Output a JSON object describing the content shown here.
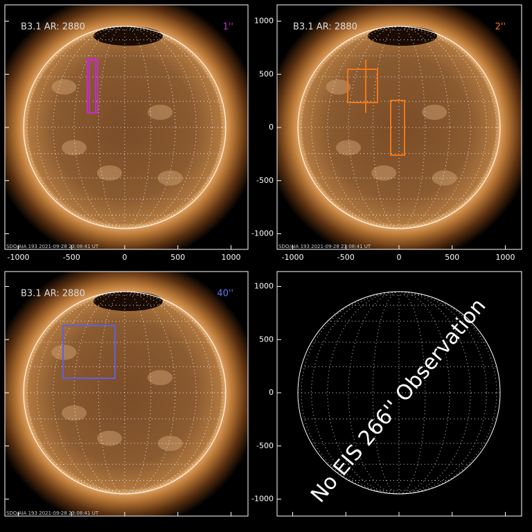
{
  "axes": {
    "xticks": [
      -1000,
      -500,
      0,
      500,
      1000
    ],
    "yticks": [
      -1000,
      -500,
      0,
      500,
      1000
    ]
  },
  "panels": [
    {
      "label": "B3.1 AR: 2880",
      "tag": "1''",
      "footer": "SDO/AIA 193  2021-09-28 23:08:41 UT"
    },
    {
      "label": "B3.1 AR: 2880",
      "tag": "2''",
      "footer": "SDO/AIA 193  2021-09-28 23:08:41 UT"
    },
    {
      "label": "B3.1 AR: 2880",
      "tag": "40''",
      "footer": "SDO/AIA 193  2021-09-28 23:08:41 UT"
    },
    {
      "message": "No EIS 266'' Observation"
    }
  ]
}
